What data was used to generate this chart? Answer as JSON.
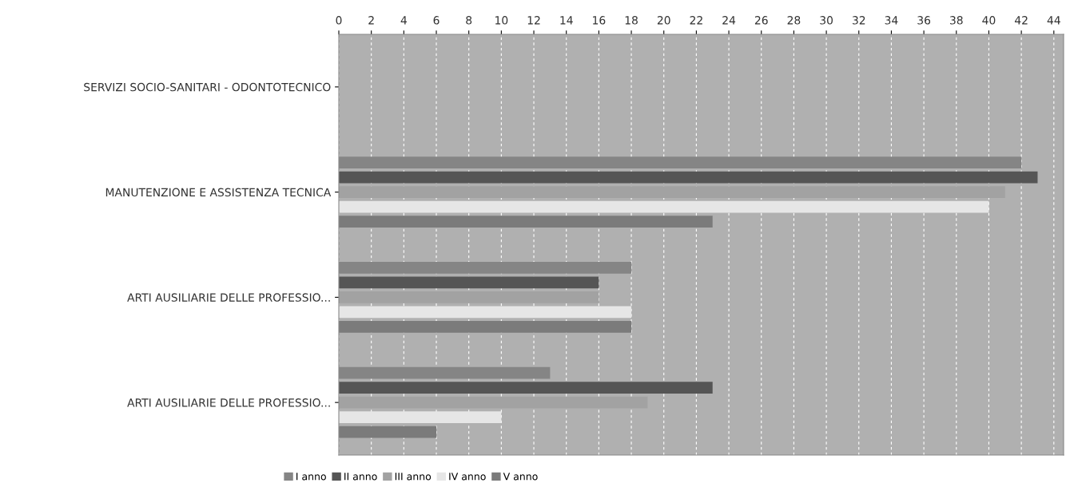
{
  "chart_data": {
    "type": "bar",
    "orientation": "horizontal",
    "categories": [
      "SERVIZI SOCIO-SANITARI - ODONTOTECNICO",
      "MANUTENZIONE E ASSISTENZA TECNICA",
      "ARTI AUSILIARIE DELLE PROFESSIO...",
      "ARTI AUSILIARIE DELLE PROFESSIO..."
    ],
    "series": [
      {
        "name": "I anno",
        "color": "#858585",
        "values": [
          0,
          42,
          18,
          13
        ]
      },
      {
        "name": "II anno",
        "color": "#555555",
        "values": [
          0,
          43,
          16,
          23
        ]
      },
      {
        "name": "III anno",
        "color": "#a2a2a2",
        "values": [
          0,
          41,
          16,
          19
        ]
      },
      {
        "name": "IV anno",
        "color": "#e6e6e6",
        "values": [
          0,
          40,
          18,
          10
        ]
      },
      {
        "name": "V anno",
        "color": "#7b7b7b",
        "values": [
          0,
          23,
          18,
          6
        ]
      }
    ],
    "xlim": [
      0,
      44.6
    ],
    "xticks": [
      0,
      2,
      4,
      6,
      8,
      10,
      12,
      14,
      16,
      18,
      20,
      22,
      24,
      26,
      28,
      30,
      32,
      34,
      36,
      38,
      40,
      42,
      44
    ],
    "grid": "x",
    "legend": "bottom"
  }
}
